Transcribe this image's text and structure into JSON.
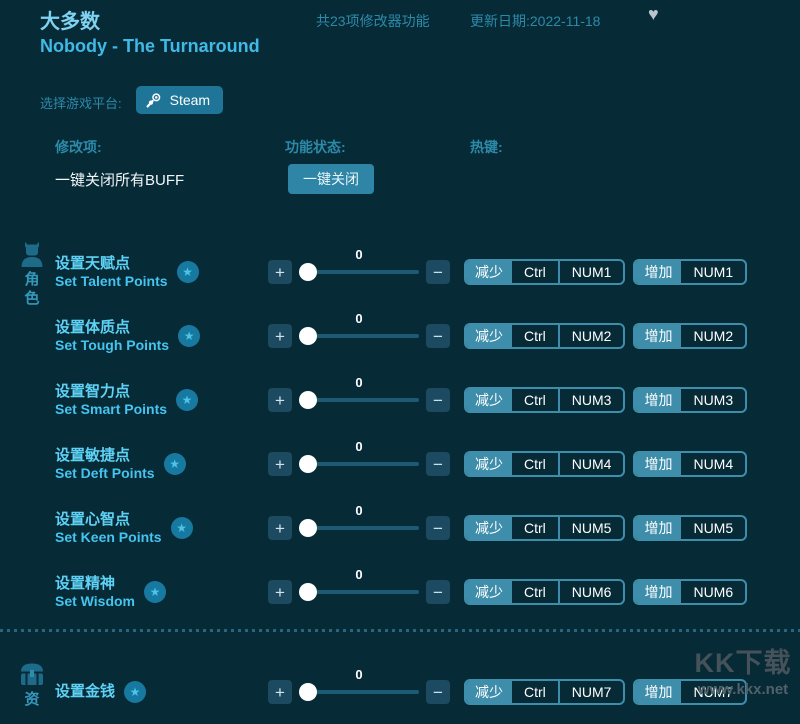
{
  "header": {
    "app_title": "大多数",
    "feature_count": "共23项修改器功能",
    "update_date": "更新日期:2022-11-18",
    "game_title": "Nobody - The Turnaround"
  },
  "platform": {
    "label": "选择游戏平台:",
    "selected": "Steam"
  },
  "columns": {
    "item": "修改项:",
    "status": "功能状态:",
    "hotkey": "热键:"
  },
  "master": {
    "label": "一键关闭所有BUFF",
    "button_label": "一键关闭"
  },
  "sections": [
    {
      "category": "角色",
      "icon": "character-bust-icon",
      "rows": [
        {
          "title_zh": "设置天赋点",
          "title_en": "Set Talent Points",
          "value": "0",
          "decrease": [
            "减少",
            "Ctrl",
            "NUM1"
          ],
          "increase": [
            "增加",
            "NUM1"
          ]
        },
        {
          "title_zh": "设置体质点",
          "title_en": "Set Tough Points",
          "value": "0",
          "decrease": [
            "减少",
            "Ctrl",
            "NUM2"
          ],
          "increase": [
            "增加",
            "NUM2"
          ]
        },
        {
          "title_zh": "设置智力点",
          "title_en": "Set Smart Points",
          "value": "0",
          "decrease": [
            "减少",
            "Ctrl",
            "NUM3"
          ],
          "increase": [
            "增加",
            "NUM3"
          ]
        },
        {
          "title_zh": "设置敏捷点",
          "title_en": "Set Deft Points",
          "value": "0",
          "decrease": [
            "减少",
            "Ctrl",
            "NUM4"
          ],
          "increase": [
            "增加",
            "NUM4"
          ]
        },
        {
          "title_zh": "设置心智点",
          "title_en": "Set Keen Points",
          "value": "0",
          "decrease": [
            "减少",
            "Ctrl",
            "NUM5"
          ],
          "increase": [
            "增加",
            "NUM5"
          ]
        },
        {
          "title_zh": "设置精神",
          "title_en": "Set Wisdom",
          "value": "0",
          "decrease": [
            "减少",
            "Ctrl",
            "NUM6"
          ],
          "increase": [
            "增加",
            "NUM6"
          ]
        }
      ]
    },
    {
      "category": "资",
      "icon": "treasure-chest-icon",
      "rows": [
        {
          "title_zh": "设置金钱",
          "title_en": "",
          "value": "0",
          "decrease": [
            "减少",
            "Ctrl",
            "NUM7"
          ],
          "increase": [
            "增加",
            "NUM7"
          ]
        }
      ]
    }
  ],
  "watermark": {
    "logo": "KK下载",
    "url": "www.kkx.net"
  },
  "colors": {
    "background": "#072a37",
    "accent": "#3e8dab",
    "highlight_text": "#5ed2f5",
    "muted_label": "#2c8aa9",
    "button": "#2e85a6",
    "steam_button": "#1e7598"
  }
}
